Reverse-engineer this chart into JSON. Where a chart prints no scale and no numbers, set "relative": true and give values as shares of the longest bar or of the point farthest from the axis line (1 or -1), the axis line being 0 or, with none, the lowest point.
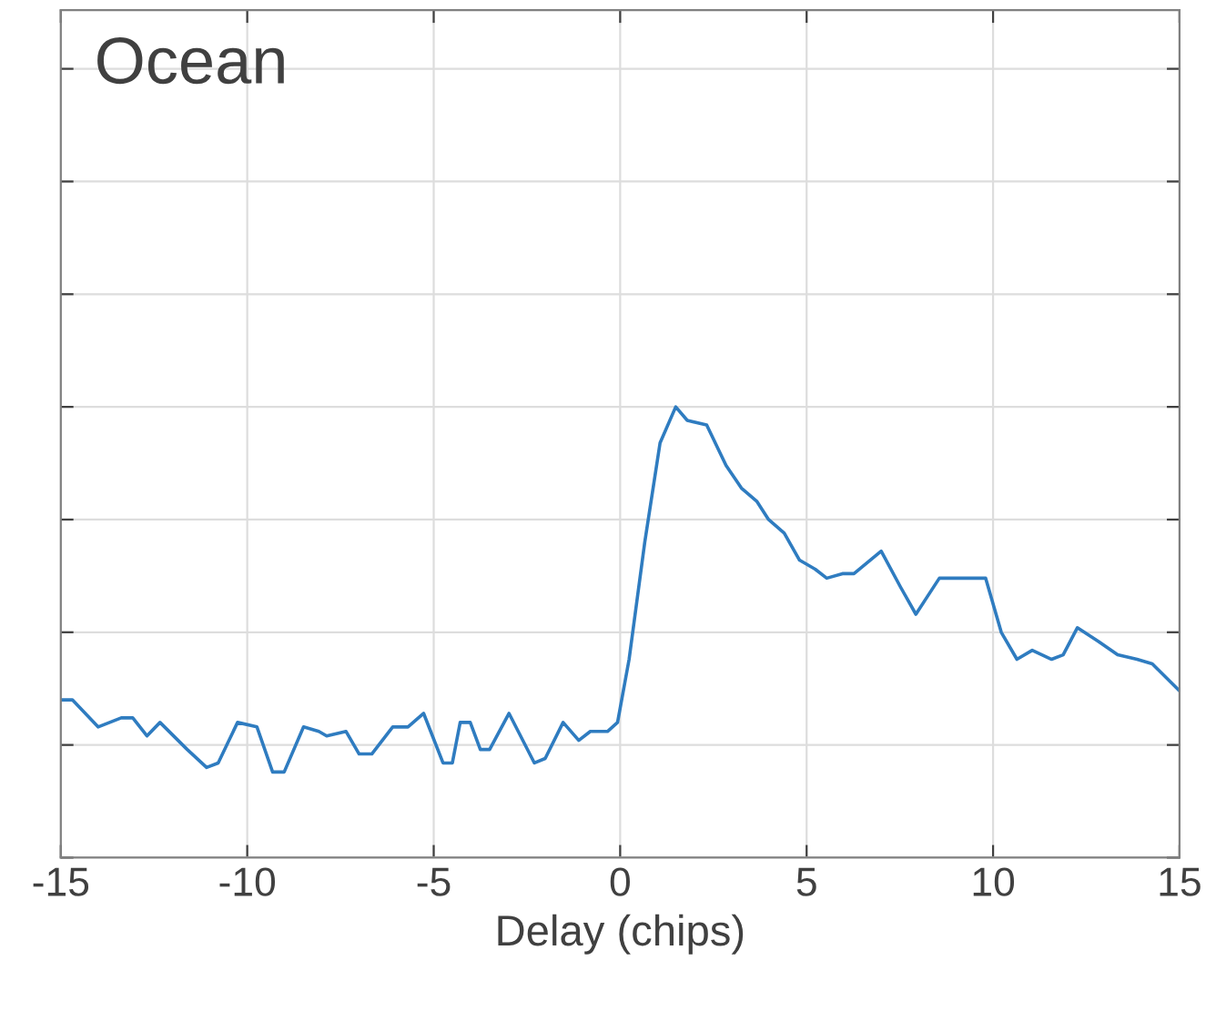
{
  "chart_data": {
    "type": "line",
    "relative": true,
    "xlabel": "Delay (chips)",
    "annotations": [
      "Ocean"
    ],
    "xlim": [
      -15,
      15
    ],
    "xticks": [
      -15,
      -10,
      -5,
      0,
      5,
      10,
      15
    ],
    "grid": true,
    "tick_labels": "x",
    "x": [
      -15,
      -14.69,
      -14.0,
      -13.38,
      -13.07,
      -12.69,
      -12.34,
      -11.61,
      -11.09,
      -10.78,
      -10.26,
      -9.74,
      -9.32,
      -9.01,
      -8.49,
      -8.08,
      -7.87,
      -7.35,
      -7.0,
      -6.66,
      -6.1,
      -5.69,
      -5.27,
      -4.75,
      -4.5,
      -4.29,
      -4.02,
      -3.75,
      -3.5,
      -2.98,
      -2.3,
      -2.01,
      -1.53,
      -1.11,
      -0.8,
      -0.34,
      -0.07,
      0.24,
      0.66,
      1.07,
      1.49,
      1.8,
      2.32,
      2.84,
      3.25,
      3.67,
      3.98,
      4.4,
      4.81,
      5.23,
      5.54,
      5.96,
      6.27,
      7.0,
      7.52,
      7.93,
      8.56,
      9.29,
      9.8,
      10.22,
      10.64,
      11.05,
      11.57,
      11.88,
      12.26,
      12.82,
      13.34,
      13.86,
      14.27,
      15.0
    ],
    "series": [
      {
        "color": "#2f7cc0",
        "values": [
          0.35,
          0.35,
          0.29,
          0.31,
          0.31,
          0.27,
          0.3,
          0.24,
          0.2,
          0.21,
          0.3,
          0.29,
          0.19,
          0.19,
          0.29,
          0.28,
          0.27,
          0.28,
          0.23,
          0.23,
          0.29,
          0.29,
          0.32,
          0.21,
          0.21,
          0.3,
          0.3,
          0.24,
          0.24,
          0.32,
          0.21,
          0.22,
          0.3,
          0.26,
          0.28,
          0.28,
          0.3,
          0.44,
          0.7,
          0.92,
          1.0,
          0.97,
          0.96,
          0.87,
          0.82,
          0.79,
          0.75,
          0.72,
          0.66,
          0.64,
          0.62,
          0.63,
          0.63,
          0.68,
          0.6,
          0.54,
          0.62,
          0.62,
          0.62,
          0.5,
          0.44,
          0.46,
          0.44,
          0.45,
          0.51,
          0.48,
          0.45,
          0.44,
          0.43,
          0.37
        ]
      }
    ]
  }
}
